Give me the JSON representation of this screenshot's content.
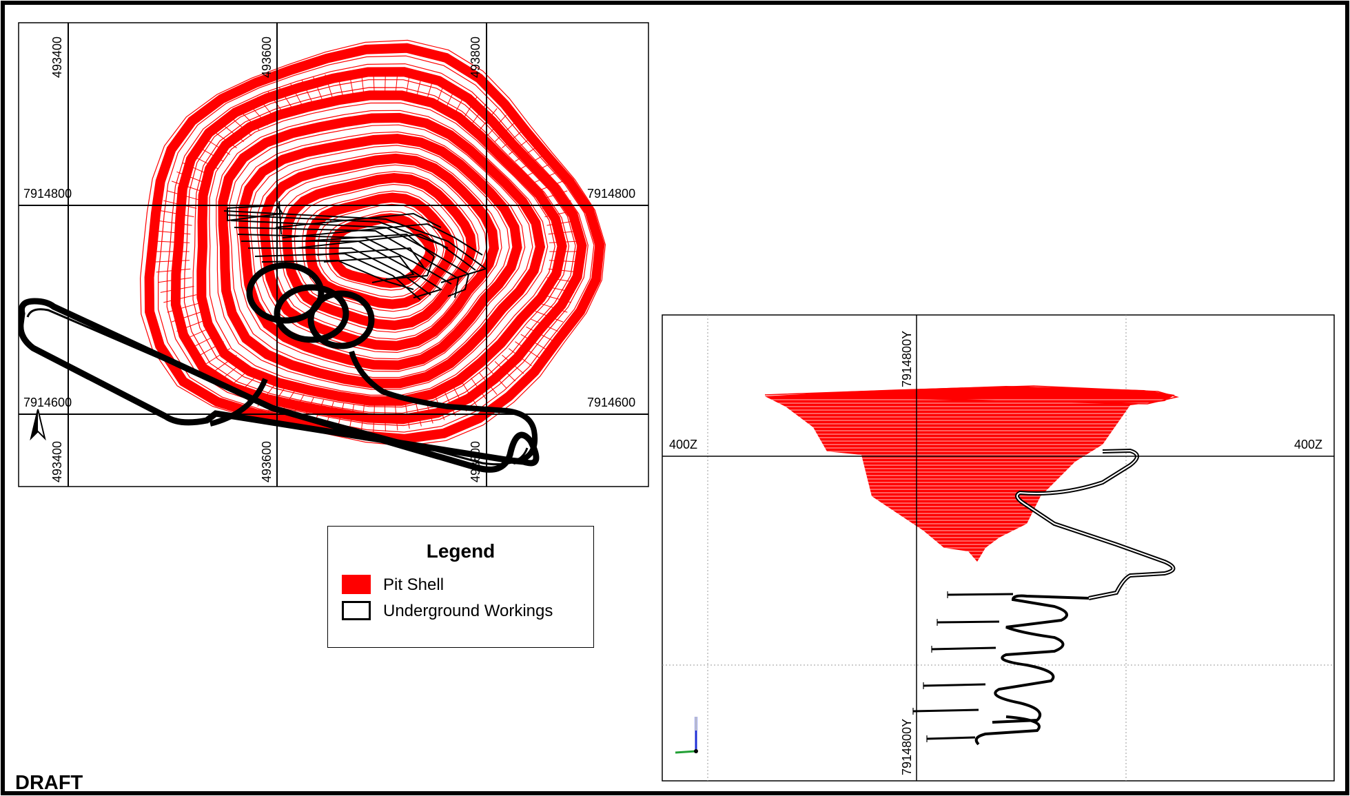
{
  "plan_view": {
    "easting_labels_top": [
      "493400",
      "493600",
      "493800"
    ],
    "easting_labels_bottom": [
      "493400",
      "493600",
      "493800"
    ],
    "northing_labels_left": [
      "7914800",
      "7914600"
    ],
    "northing_labels_right": [
      "7914800",
      "7914600"
    ],
    "north_arrow_icon": "north-arrow-icon"
  },
  "section_view": {
    "y_label_top": "7914800Y",
    "y_label_bottom": "7914800Y",
    "z_label_left": "400Z",
    "z_label_right": "400Z",
    "axis_triad_icon": "axis-triad-icon"
  },
  "legend": {
    "title": "Legend",
    "items": [
      {
        "label": "Pit Shell",
        "color": "#ff0000",
        "symbol": "filled-box"
      },
      {
        "label": "Underground Workings",
        "color": "#000000",
        "symbol": "outline-box"
      }
    ]
  },
  "stamp": "DRAFT",
  "colors": {
    "pit_shell": "#ff0000",
    "workings": "#000000",
    "frame": "#000000"
  }
}
